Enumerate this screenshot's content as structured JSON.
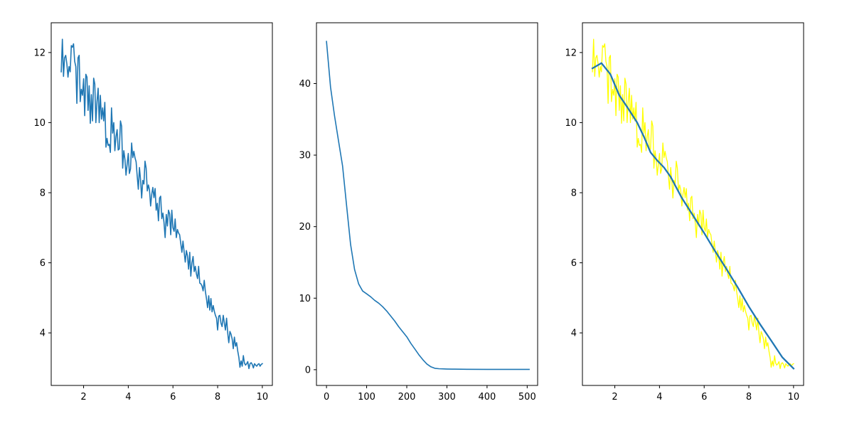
{
  "chart_data": [
    {
      "type": "line",
      "title": "",
      "xlabel": "",
      "ylabel": "",
      "xlim": [
        0.55,
        10.45
      ],
      "ylim": [
        2.5,
        12.85
      ],
      "xticks": [
        "2",
        "4",
        "6",
        "8",
        "10"
      ],
      "yticks": [
        "4",
        "6",
        "8",
        "10",
        "12"
      ],
      "grid": false,
      "series": [
        {
          "color": "#1f77b4",
          "x": [
            1.0,
            1.05,
            1.1,
            1.15,
            1.2,
            1.25,
            1.3,
            1.35,
            1.4,
            1.45,
            1.5,
            1.55,
            1.6,
            1.65,
            1.7,
            1.75,
            1.8,
            1.85,
            1.9,
            1.95,
            2.0,
            2.05,
            2.1,
            2.15,
            2.2,
            2.25,
            2.3,
            2.35,
            2.4,
            2.45,
            2.5,
            2.55,
            2.6,
            2.65,
            2.7,
            2.75,
            2.8,
            2.85,
            2.9,
            2.95,
            3.0,
            3.05,
            3.1,
            3.15,
            3.2,
            3.25,
            3.3,
            3.35,
            3.4,
            3.45,
            3.5,
            3.55,
            3.6,
            3.65,
            3.7,
            3.75,
            3.8,
            3.85,
            3.9,
            3.95,
            4.0,
            4.05,
            4.1,
            4.15,
            4.2,
            4.25,
            4.3,
            4.35,
            4.4,
            4.45,
            4.5,
            4.55,
            4.6,
            4.65,
            4.7,
            4.75,
            4.8,
            4.85,
            4.9,
            4.95,
            5.0,
            5.05,
            5.1,
            5.15,
            5.2,
            5.25,
            5.3,
            5.35,
            5.4,
            5.45,
            5.5,
            5.55,
            5.6,
            5.65,
            5.7,
            5.75,
            5.8,
            5.85,
            5.9,
            5.95,
            6.0,
            6.05,
            6.1,
            6.15,
            6.2,
            6.25,
            6.3,
            6.35,
            6.4,
            6.45,
            6.5,
            6.55,
            6.6,
            6.65,
            6.7,
            6.75,
            6.8,
            6.85,
            6.9,
            6.95,
            7.0,
            7.05,
            7.1,
            7.15,
            7.2,
            7.25,
            7.3,
            7.35,
            7.4,
            7.45,
            7.5,
            7.55,
            7.6,
            7.65,
            7.7,
            7.75,
            7.8,
            7.85,
            7.9,
            7.95,
            8.0,
            8.05,
            8.1,
            8.15,
            8.2,
            8.25,
            8.3,
            8.35,
            8.4,
            8.45,
            8.5,
            8.55,
            8.6,
            8.65,
            8.7,
            8.75,
            8.8,
            8.85,
            8.9,
            8.95,
            9.0,
            9.05,
            9.1,
            9.15,
            9.2,
            9.25,
            9.3,
            9.35,
            9.4,
            9.45,
            9.5,
            9.55,
            9.6,
            9.65,
            9.7,
            9.75,
            9.8,
            9.85,
            9.9,
            9.95,
            10.0
          ],
          "y": [
            11.45,
            12.38,
            11.32,
            11.85,
            11.92,
            11.68,
            11.3,
            11.6,
            11.45,
            12.2,
            12.15,
            12.25,
            11.75,
            11.6,
            10.55,
            11.85,
            11.92,
            10.6,
            10.95,
            10.78,
            11.25,
            10.2,
            11.38,
            11.3,
            10.35,
            11.05,
            9.98,
            10.8,
            10.05,
            11.27,
            11.1,
            10.0,
            10.6,
            10.98,
            10.0,
            10.78,
            10.1,
            10.42,
            10.05,
            10.58,
            9.3,
            9.55,
            9.35,
            9.38,
            9.15,
            10.42,
            9.7,
            10.0,
            9.2,
            9.6,
            9.8,
            9.22,
            9.25,
            10.05,
            9.9,
            8.7,
            9.2,
            8.95,
            8.5,
            8.82,
            9.12,
            8.55,
            8.68,
            9.42,
            9.0,
            9.18,
            9.0,
            8.88,
            8.48,
            8.1,
            8.72,
            8.35,
            7.85,
            8.35,
            8.25,
            8.9,
            8.7,
            8.05,
            8.22,
            8.08,
            7.62,
            7.96,
            8.15,
            7.86,
            8.12,
            7.5,
            7.7,
            7.2,
            7.85,
            7.9,
            7.26,
            7.42,
            7.15,
            6.72,
            7.38,
            7.05,
            7.5,
            7.4,
            6.8,
            7.5,
            7.0,
            6.9,
            7.25,
            6.72,
            6.95,
            6.85,
            6.8,
            6.55,
            6.3,
            6.62,
            6.32,
            6.02,
            6.35,
            6.2,
            5.82,
            6.3,
            5.62,
            6.0,
            6.18,
            5.75,
            5.9,
            5.68,
            5.55,
            5.9,
            5.42,
            5.4,
            5.34,
            5.2,
            5.5,
            5.18,
            4.98,
            4.72,
            5.06,
            4.65,
            4.98,
            4.6,
            4.78,
            4.62,
            4.5,
            4.42,
            4.08,
            4.48,
            4.5,
            4.28,
            4.18,
            4.5,
            4.28,
            4.08,
            4.42,
            4.0,
            3.72,
            4.04,
            3.96,
            3.82,
            3.55,
            3.88,
            3.62,
            3.72,
            3.48,
            3.3,
            3.02,
            3.2,
            3.05,
            3.35,
            3.14,
            3.08,
            3.12,
            3.18,
            2.98,
            3.12,
            3.15,
            3.1,
            3.0,
            3.12,
            3.08,
            3.05,
            3.1,
            3.12,
            3.05,
            3.1,
            3.12
          ]
        }
      ]
    },
    {
      "type": "line",
      "title": "",
      "xlabel": "",
      "ylabel": "",
      "xlim": [
        -25,
        526
      ],
      "ylim": [
        -2.2,
        48.5
      ],
      "xticks": [
        "0",
        "100",
        "200",
        "300",
        "400",
        "500"
      ],
      "yticks": [
        "0",
        "10",
        "20",
        "30",
        "40"
      ],
      "grid": false,
      "series": [
        {
          "color": "#1f77b4",
          "x": [
            0,
            10,
            20,
            30,
            40,
            50,
            60,
            70,
            80,
            90,
            100,
            110,
            120,
            130,
            140,
            150,
            160,
            170,
            180,
            190,
            200,
            210,
            220,
            230,
            240,
            250,
            260,
            270,
            280,
            290,
            300,
            320,
            350,
            400,
            450,
            500,
            505
          ],
          "y": [
            45.9,
            39.5,
            35.5,
            32.0,
            28.5,
            23.0,
            17.5,
            14.0,
            12.0,
            11.0,
            10.6,
            10.2,
            9.7,
            9.3,
            8.8,
            8.2,
            7.5,
            6.8,
            6.0,
            5.3,
            4.6,
            3.7,
            2.9,
            2.1,
            1.4,
            0.8,
            0.4,
            0.2,
            0.14,
            0.12,
            0.1,
            0.08,
            0.06,
            0.05,
            0.05,
            0.05,
            0.05
          ]
        }
      ]
    },
    {
      "type": "line",
      "title": "",
      "xlabel": "",
      "ylabel": "",
      "xlim": [
        0.55,
        10.45
      ],
      "ylim": [
        2.5,
        12.85
      ],
      "xticks": [
        "2",
        "4",
        "6",
        "8",
        "10"
      ],
      "yticks": [
        "4",
        "6",
        "8",
        "10",
        "12"
      ],
      "grid": false,
      "series": [
        {
          "color": "#ffff00",
          "x": [
            1.0,
            1.05,
            1.1,
            1.15,
            1.2,
            1.25,
            1.3,
            1.35,
            1.4,
            1.45,
            1.5,
            1.55,
            1.6,
            1.65,
            1.7,
            1.75,
            1.8,
            1.85,
            1.9,
            1.95,
            2.0,
            2.05,
            2.1,
            2.15,
            2.2,
            2.25,
            2.3,
            2.35,
            2.4,
            2.45,
            2.5,
            2.55,
            2.6,
            2.65,
            2.7,
            2.75,
            2.8,
            2.85,
            2.9,
            2.95,
            3.0,
            3.05,
            3.1,
            3.15,
            3.2,
            3.25,
            3.3,
            3.35,
            3.4,
            3.45,
            3.5,
            3.55,
            3.6,
            3.65,
            3.7,
            3.75,
            3.8,
            3.85,
            3.9,
            3.95,
            4.0,
            4.05,
            4.1,
            4.15,
            4.2,
            4.25,
            4.3,
            4.35,
            4.4,
            4.45,
            4.5,
            4.55,
            4.6,
            4.65,
            4.7,
            4.75,
            4.8,
            4.85,
            4.9,
            4.95,
            5.0,
            5.05,
            5.1,
            5.15,
            5.2,
            5.25,
            5.3,
            5.35,
            5.4,
            5.45,
            5.5,
            5.55,
            5.6,
            5.65,
            5.7,
            5.75,
            5.8,
            5.85,
            5.9,
            5.95,
            6.0,
            6.05,
            6.1,
            6.15,
            6.2,
            6.25,
            6.3,
            6.35,
            6.4,
            6.45,
            6.5,
            6.55,
            6.6,
            6.65,
            6.7,
            6.75,
            6.8,
            6.85,
            6.9,
            6.95,
            7.0,
            7.05,
            7.1,
            7.15,
            7.2,
            7.25,
            7.3,
            7.35,
            7.4,
            7.45,
            7.5,
            7.55,
            7.6,
            7.65,
            7.7,
            7.75,
            7.8,
            7.85,
            7.9,
            7.95,
            8.0,
            8.05,
            8.1,
            8.15,
            8.2,
            8.25,
            8.3,
            8.35,
            8.4,
            8.45,
            8.5,
            8.55,
            8.6,
            8.65,
            8.7,
            8.75,
            8.8,
            8.85,
            8.9,
            8.95,
            9.0,
            9.05,
            9.1,
            9.15,
            9.2,
            9.25,
            9.3,
            9.35,
            9.4,
            9.45,
            9.5,
            9.55,
            9.6,
            9.65,
            9.7,
            9.75,
            9.8,
            9.85,
            9.9,
            9.95,
            10.0
          ],
          "y": [
            11.45,
            12.38,
            11.32,
            11.85,
            11.92,
            11.68,
            11.3,
            11.6,
            11.45,
            12.2,
            12.15,
            12.25,
            11.75,
            11.6,
            10.55,
            11.85,
            11.92,
            10.6,
            10.95,
            10.78,
            11.25,
            10.2,
            11.38,
            11.3,
            10.35,
            11.05,
            9.98,
            10.8,
            10.05,
            11.27,
            11.1,
            10.0,
            10.6,
            10.98,
            10.0,
            10.78,
            10.1,
            10.42,
            10.05,
            10.58,
            9.3,
            9.55,
            9.35,
            9.38,
            9.15,
            10.42,
            9.7,
            10.0,
            9.2,
            9.6,
            9.8,
            9.22,
            9.25,
            10.05,
            9.9,
            8.7,
            9.2,
            8.95,
            8.5,
            8.82,
            9.12,
            8.55,
            8.68,
            9.42,
            9.0,
            9.18,
            9.0,
            8.88,
            8.48,
            8.1,
            8.72,
            8.35,
            7.85,
            8.35,
            8.25,
            8.9,
            8.7,
            8.05,
            8.22,
            8.08,
            7.62,
            7.96,
            8.15,
            7.86,
            8.12,
            7.5,
            7.7,
            7.2,
            7.85,
            7.9,
            7.26,
            7.42,
            7.15,
            6.72,
            7.38,
            7.05,
            7.5,
            7.4,
            6.8,
            7.5,
            7.0,
            6.9,
            7.25,
            6.72,
            6.95,
            6.85,
            6.8,
            6.55,
            6.3,
            6.62,
            6.32,
            6.02,
            6.35,
            6.2,
            5.82,
            6.3,
            5.62,
            6.0,
            6.18,
            5.75,
            5.9,
            5.68,
            5.55,
            5.9,
            5.42,
            5.4,
            5.34,
            5.2,
            5.5,
            5.18,
            4.98,
            4.72,
            5.06,
            4.65,
            4.98,
            4.6,
            4.78,
            4.62,
            4.5,
            4.42,
            4.08,
            4.48,
            4.5,
            4.28,
            4.18,
            4.5,
            4.28,
            4.08,
            4.42,
            4.0,
            3.72,
            4.04,
            3.96,
            3.82,
            3.55,
            3.88,
            3.62,
            3.72,
            3.48,
            3.3,
            3.02,
            3.2,
            3.05,
            3.35,
            3.14,
            3.08,
            3.12,
            3.18,
            2.98,
            3.12,
            3.15,
            3.1,
            3.0,
            3.12,
            3.08,
            3.05,
            3.1,
            3.12,
            3.05,
            3.1,
            3.12
          ],
          "width": 1.3
        },
        {
          "color": "#1f77b4",
          "x": [
            1.0,
            1.4,
            1.8,
            2.2,
            2.6,
            3.0,
            3.3,
            3.6,
            3.9,
            4.2,
            4.5,
            5.0,
            5.5,
            6.0,
            6.5,
            7.0,
            7.5,
            8.0,
            8.5,
            9.0,
            9.5,
            10.0
          ],
          "y": [
            11.55,
            11.7,
            11.38,
            10.78,
            10.4,
            10.0,
            9.6,
            9.15,
            8.92,
            8.72,
            8.45,
            7.85,
            7.35,
            6.85,
            6.32,
            5.82,
            5.3,
            4.75,
            4.25,
            3.78,
            3.3,
            2.98
          ],
          "width": 2.3
        }
      ]
    }
  ]
}
